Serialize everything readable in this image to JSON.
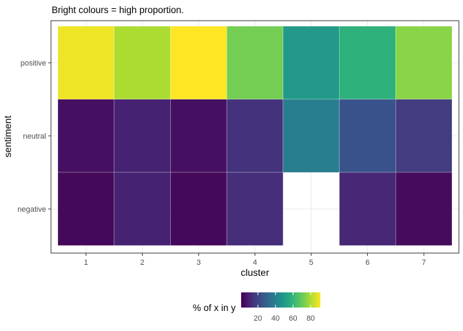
{
  "chart_data": {
    "type": "heatmap",
    "title": "Bright colours = high proportion.",
    "xlabel": "cluster",
    "ylabel": "sentiment",
    "x_categories": [
      "1",
      "2",
      "3",
      "4",
      "5",
      "6",
      "7"
    ],
    "y_categories": [
      "positive",
      "neutral",
      "negative"
    ],
    "values": {
      "positive": [
        89,
        80,
        91,
        72,
        50,
        59,
        75
      ],
      "neutral": [
        5,
        10,
        5,
        14,
        39,
        24,
        17
      ],
      "negative": [
        3,
        10,
        3,
        13,
        null,
        11,
        4
      ]
    },
    "legend": {
      "title": "% of x in y",
      "ticks": [
        20,
        40,
        60,
        80
      ],
      "range": [
        1,
        91
      ],
      "position": "bottom"
    },
    "color_scale": "viridis",
    "grid": true,
    "missing_color": "#ffffff"
  }
}
